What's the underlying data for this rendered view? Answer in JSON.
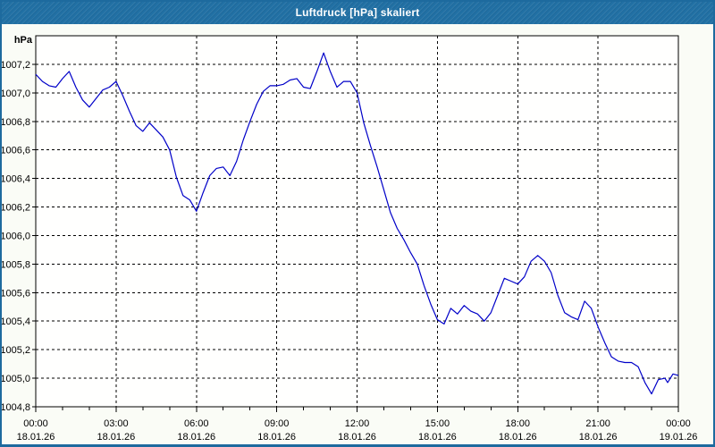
{
  "window": {
    "title": "Luftdruck [hPa] skaliert"
  },
  "colors": {
    "titlebar": "#2170A4",
    "frame": "#1D6A9E",
    "line": "#0000C8",
    "grid": "#000000",
    "content_bg": "#FAFCF6",
    "plot_bg": "#FFFFFE"
  },
  "chart_data": {
    "type": "line",
    "title": "Luftdruck [hPa] skaliert",
    "unit_label": "hPa",
    "ylim": [
      1004.8,
      1007.4
    ],
    "yticks": [
      1004.8,
      1005.0,
      1005.2,
      1005.4,
      1005.6,
      1005.8,
      1006.0,
      1006.2,
      1006.4,
      1006.6,
      1006.8,
      1007.0,
      1007.2
    ],
    "decimal_separator": ",",
    "grid": true,
    "xlim_hours": [
      0,
      24
    ],
    "minor_xtick_hours": 1,
    "xticks": [
      {
        "h": 0,
        "time": "00:00",
        "date": "18.01.26"
      },
      {
        "h": 3,
        "time": "03:00",
        "date": "18.01.26"
      },
      {
        "h": 6,
        "time": "06:00",
        "date": "18.01.26"
      },
      {
        "h": 9,
        "time": "09:00",
        "date": "18.01.26"
      },
      {
        "h": 12,
        "time": "12:00",
        "date": "18.01.26"
      },
      {
        "h": 15,
        "time": "15:00",
        "date": "18.01.26"
      },
      {
        "h": 18,
        "time": "18:00",
        "date": "18.01.26"
      },
      {
        "h": 21,
        "time": "21:00",
        "date": "18.01.26"
      },
      {
        "h": 24,
        "time": "00:00",
        "date": "19.01.26"
      }
    ],
    "series": [
      {
        "name": "Luftdruck",
        "points": [
          [
            0.0,
            1007.13
          ],
          [
            0.25,
            1007.08
          ],
          [
            0.5,
            1007.05
          ],
          [
            0.75,
            1007.04
          ],
          [
            1.0,
            1007.1
          ],
          [
            1.25,
            1007.15
          ],
          [
            1.5,
            1007.04
          ],
          [
            1.75,
            1006.95
          ],
          [
            2.0,
            1006.9
          ],
          [
            2.25,
            1006.96
          ],
          [
            2.5,
            1007.02
          ],
          [
            2.75,
            1007.04
          ],
          [
            3.0,
            1007.08
          ],
          [
            3.25,
            1006.98
          ],
          [
            3.5,
            1006.87
          ],
          [
            3.75,
            1006.77
          ],
          [
            4.0,
            1006.73
          ],
          [
            4.25,
            1006.79
          ],
          [
            4.5,
            1006.74
          ],
          [
            4.75,
            1006.69
          ],
          [
            5.0,
            1006.6
          ],
          [
            5.25,
            1006.41
          ],
          [
            5.5,
            1006.28
          ],
          [
            5.75,
            1006.25
          ],
          [
            6.0,
            1006.17
          ],
          [
            6.25,
            1006.3
          ],
          [
            6.5,
            1006.42
          ],
          [
            6.75,
            1006.47
          ],
          [
            7.0,
            1006.48
          ],
          [
            7.25,
            1006.42
          ],
          [
            7.5,
            1006.52
          ],
          [
            7.75,
            1006.67
          ],
          [
            8.0,
            1006.8
          ],
          [
            8.25,
            1006.92
          ],
          [
            8.5,
            1007.01
          ],
          [
            8.75,
            1007.05
          ],
          [
            9.0,
            1007.05
          ],
          [
            9.25,
            1007.06
          ],
          [
            9.5,
            1007.09
          ],
          [
            9.75,
            1007.1
          ],
          [
            10.0,
            1007.04
          ],
          [
            10.25,
            1007.03
          ],
          [
            10.5,
            1007.15
          ],
          [
            10.75,
            1007.28
          ],
          [
            11.0,
            1007.15
          ],
          [
            11.25,
            1007.04
          ],
          [
            11.5,
            1007.08
          ],
          [
            11.75,
            1007.08
          ],
          [
            12.0,
            1007.0
          ],
          [
            12.25,
            1006.79
          ],
          [
            12.5,
            1006.63
          ],
          [
            12.75,
            1006.48
          ],
          [
            13.0,
            1006.32
          ],
          [
            13.25,
            1006.16
          ],
          [
            13.5,
            1006.05
          ],
          [
            13.75,
            1005.97
          ],
          [
            14.0,
            1005.88
          ],
          [
            14.25,
            1005.8
          ],
          [
            14.5,
            1005.65
          ],
          [
            14.75,
            1005.52
          ],
          [
            15.0,
            1005.41
          ],
          [
            15.25,
            1005.38
          ],
          [
            15.5,
            1005.49
          ],
          [
            15.75,
            1005.45
          ],
          [
            16.0,
            1005.51
          ],
          [
            16.25,
            1005.47
          ],
          [
            16.5,
            1005.45
          ],
          [
            16.75,
            1005.4
          ],
          [
            17.0,
            1005.46
          ],
          [
            17.25,
            1005.58
          ],
          [
            17.5,
            1005.7
          ],
          [
            17.75,
            1005.68
          ],
          [
            18.0,
            1005.66
          ],
          [
            18.25,
            1005.71
          ],
          [
            18.5,
            1005.82
          ],
          [
            18.75,
            1005.86
          ],
          [
            19.0,
            1005.82
          ],
          [
            19.25,
            1005.74
          ],
          [
            19.5,
            1005.58
          ],
          [
            19.75,
            1005.46
          ],
          [
            20.0,
            1005.43
          ],
          [
            20.25,
            1005.41
          ],
          [
            20.5,
            1005.54
          ],
          [
            20.75,
            1005.49
          ],
          [
            21.0,
            1005.36
          ],
          [
            21.25,
            1005.25
          ],
          [
            21.5,
            1005.15
          ],
          [
            21.75,
            1005.12
          ],
          [
            22.0,
            1005.11
          ],
          [
            22.25,
            1005.11
          ],
          [
            22.5,
            1005.08
          ],
          [
            22.75,
            1004.97
          ],
          [
            23.0,
            1004.89
          ],
          [
            23.25,
            1004.99
          ],
          [
            23.5,
            1005.0
          ],
          [
            23.6,
            1004.97
          ],
          [
            23.8,
            1005.03
          ],
          [
            24.0,
            1005.02
          ]
        ]
      }
    ]
  }
}
